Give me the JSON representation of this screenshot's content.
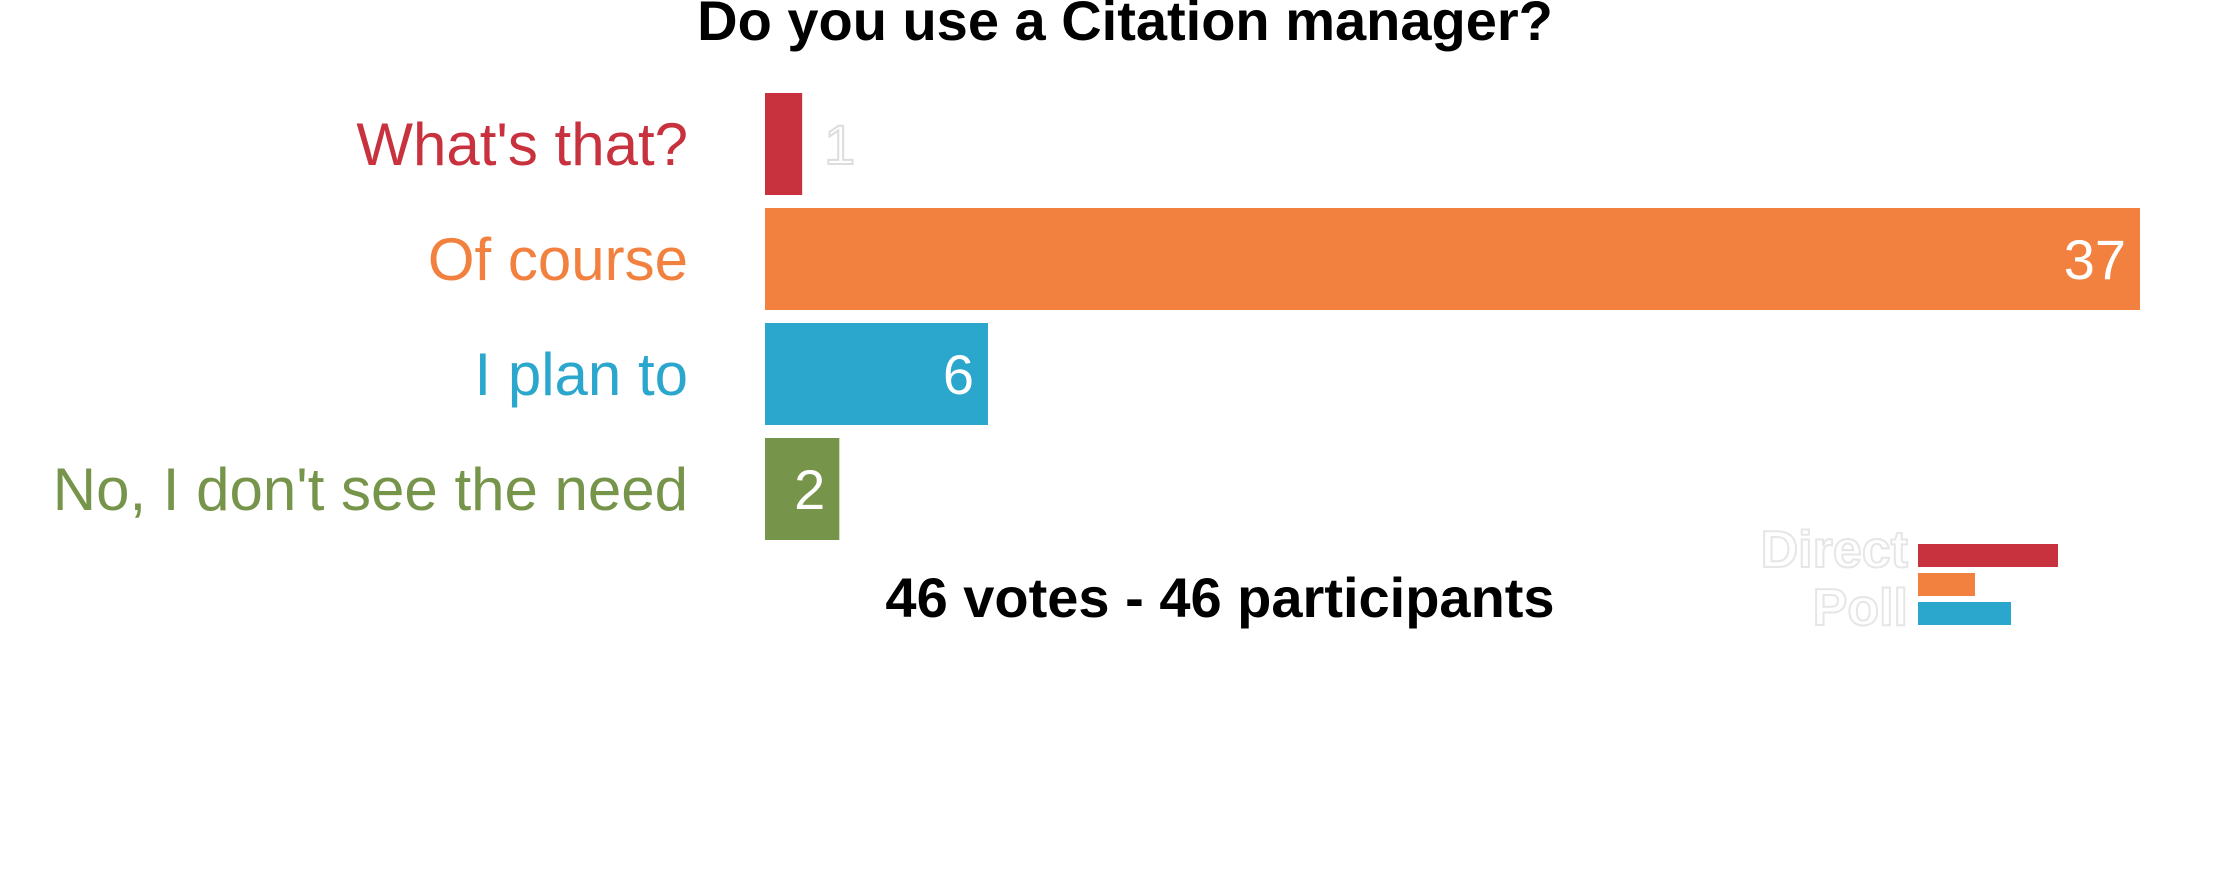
{
  "chart_data": {
    "type": "bar",
    "orientation": "horizontal",
    "title": "Do you use a Citation manager?",
    "categories": [
      "What's that?",
      "Of course",
      "I plan to",
      "No, I don't see the need"
    ],
    "values": [
      1,
      37,
      6,
      2
    ],
    "colors": [
      "#c8323e",
      "#f2813f",
      "#2ba6cc",
      "#76954a"
    ],
    "xlim": [
      0,
      37
    ],
    "grid": false,
    "footer": "46 votes - 46 participants"
  },
  "logo": {
    "line1": "Direct",
    "line2": "Poll",
    "bar_colors": [
      "#c8323e",
      "#f2813f",
      "#2ba6cc"
    ]
  }
}
